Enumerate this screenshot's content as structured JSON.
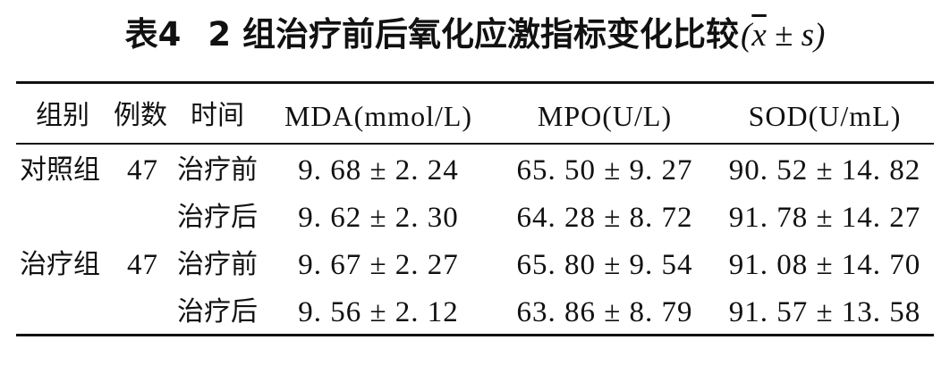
{
  "caption": {
    "table_no": "表4",
    "title": "2 组治疗前后氧化应激指标变化比较",
    "stat_open": "(",
    "stat_mean": "x",
    "stat_rest": " ± s",
    "stat_close": ")"
  },
  "headers": {
    "group": "组别",
    "n": "例数",
    "time": "时间",
    "mda": "MDA(mmol/L)",
    "mpo": "MPO(U/L)",
    "sod": "SOD(U/mL)"
  },
  "rows": [
    {
      "group": "对照组",
      "n": "47",
      "time": "治疗前",
      "mda": "9. 68 ± 2. 24",
      "mpo": "65. 50 ± 9. 27",
      "sod": "90. 52 ± 14. 82"
    },
    {
      "group": "",
      "n": "",
      "time": "治疗后",
      "mda": "9. 62 ± 2. 30",
      "mpo": "64. 28 ± 8. 72",
      "sod": "91. 78 ± 14. 27"
    },
    {
      "group": "治疗组",
      "n": "47",
      "time": "治疗前",
      "mda": "9. 67 ± 2. 27",
      "mpo": "65. 80 ± 9. 54",
      "sod": "91. 08 ± 14. 70"
    },
    {
      "group": "",
      "n": "",
      "time": "治疗后",
      "mda": "9. 56 ± 2. 12",
      "mpo": "63. 86 ± 8. 79",
      "sod": "91. 57 ± 13. 58"
    }
  ]
}
